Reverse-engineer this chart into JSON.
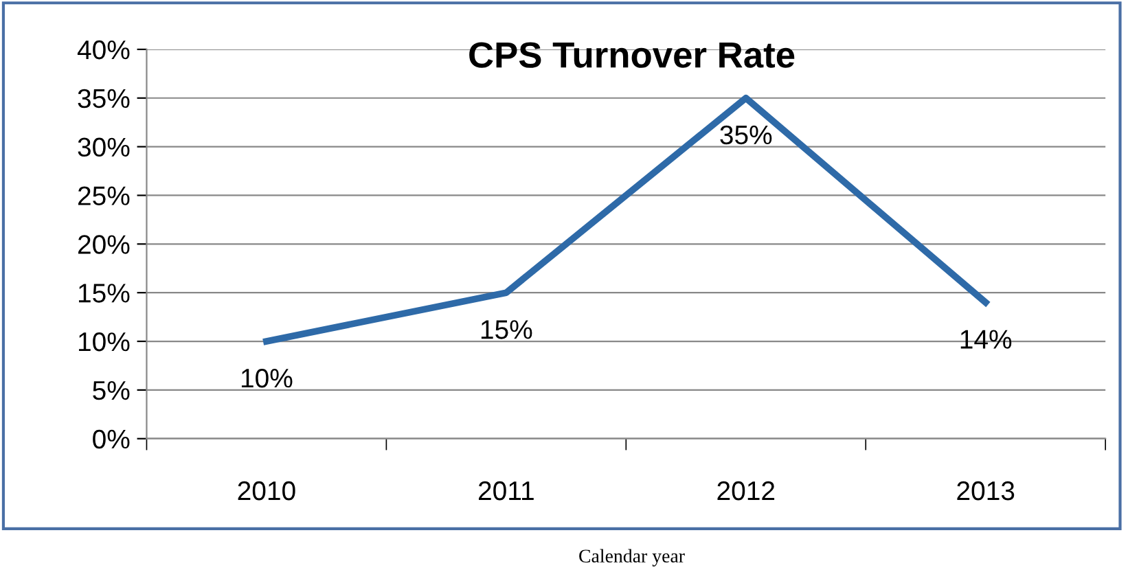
{
  "chart_data": {
    "type": "line",
    "title": "CPS Turnover Rate",
    "xlabel": "Calendar year",
    "categories": [
      "2010",
      "2011",
      "2012",
      "2013"
    ],
    "series": [
      {
        "color": "#2e6aa8",
        "values": [
          10,
          15,
          35,
          14
        ],
        "value_labels": [
          "10%",
          "15%",
          "35%",
          "14%"
        ]
      }
    ],
    "ylim": [
      0,
      40
    ],
    "yticks": [
      {
        "value": 0,
        "label": "0%"
      },
      {
        "value": 5,
        "label": "5%"
      },
      {
        "value": 10,
        "label": "10%"
      },
      {
        "value": 15,
        "label": "15%"
      },
      {
        "value": 20,
        "label": "20%"
      },
      {
        "value": 25,
        "label": "25%"
      },
      {
        "value": 30,
        "label": "30%"
      },
      {
        "value": 35,
        "label": "35%"
      },
      {
        "value": 40,
        "label": "40%"
      }
    ],
    "grid": "y",
    "legend": false,
    "marker": "none",
    "line_style": "solid"
  }
}
